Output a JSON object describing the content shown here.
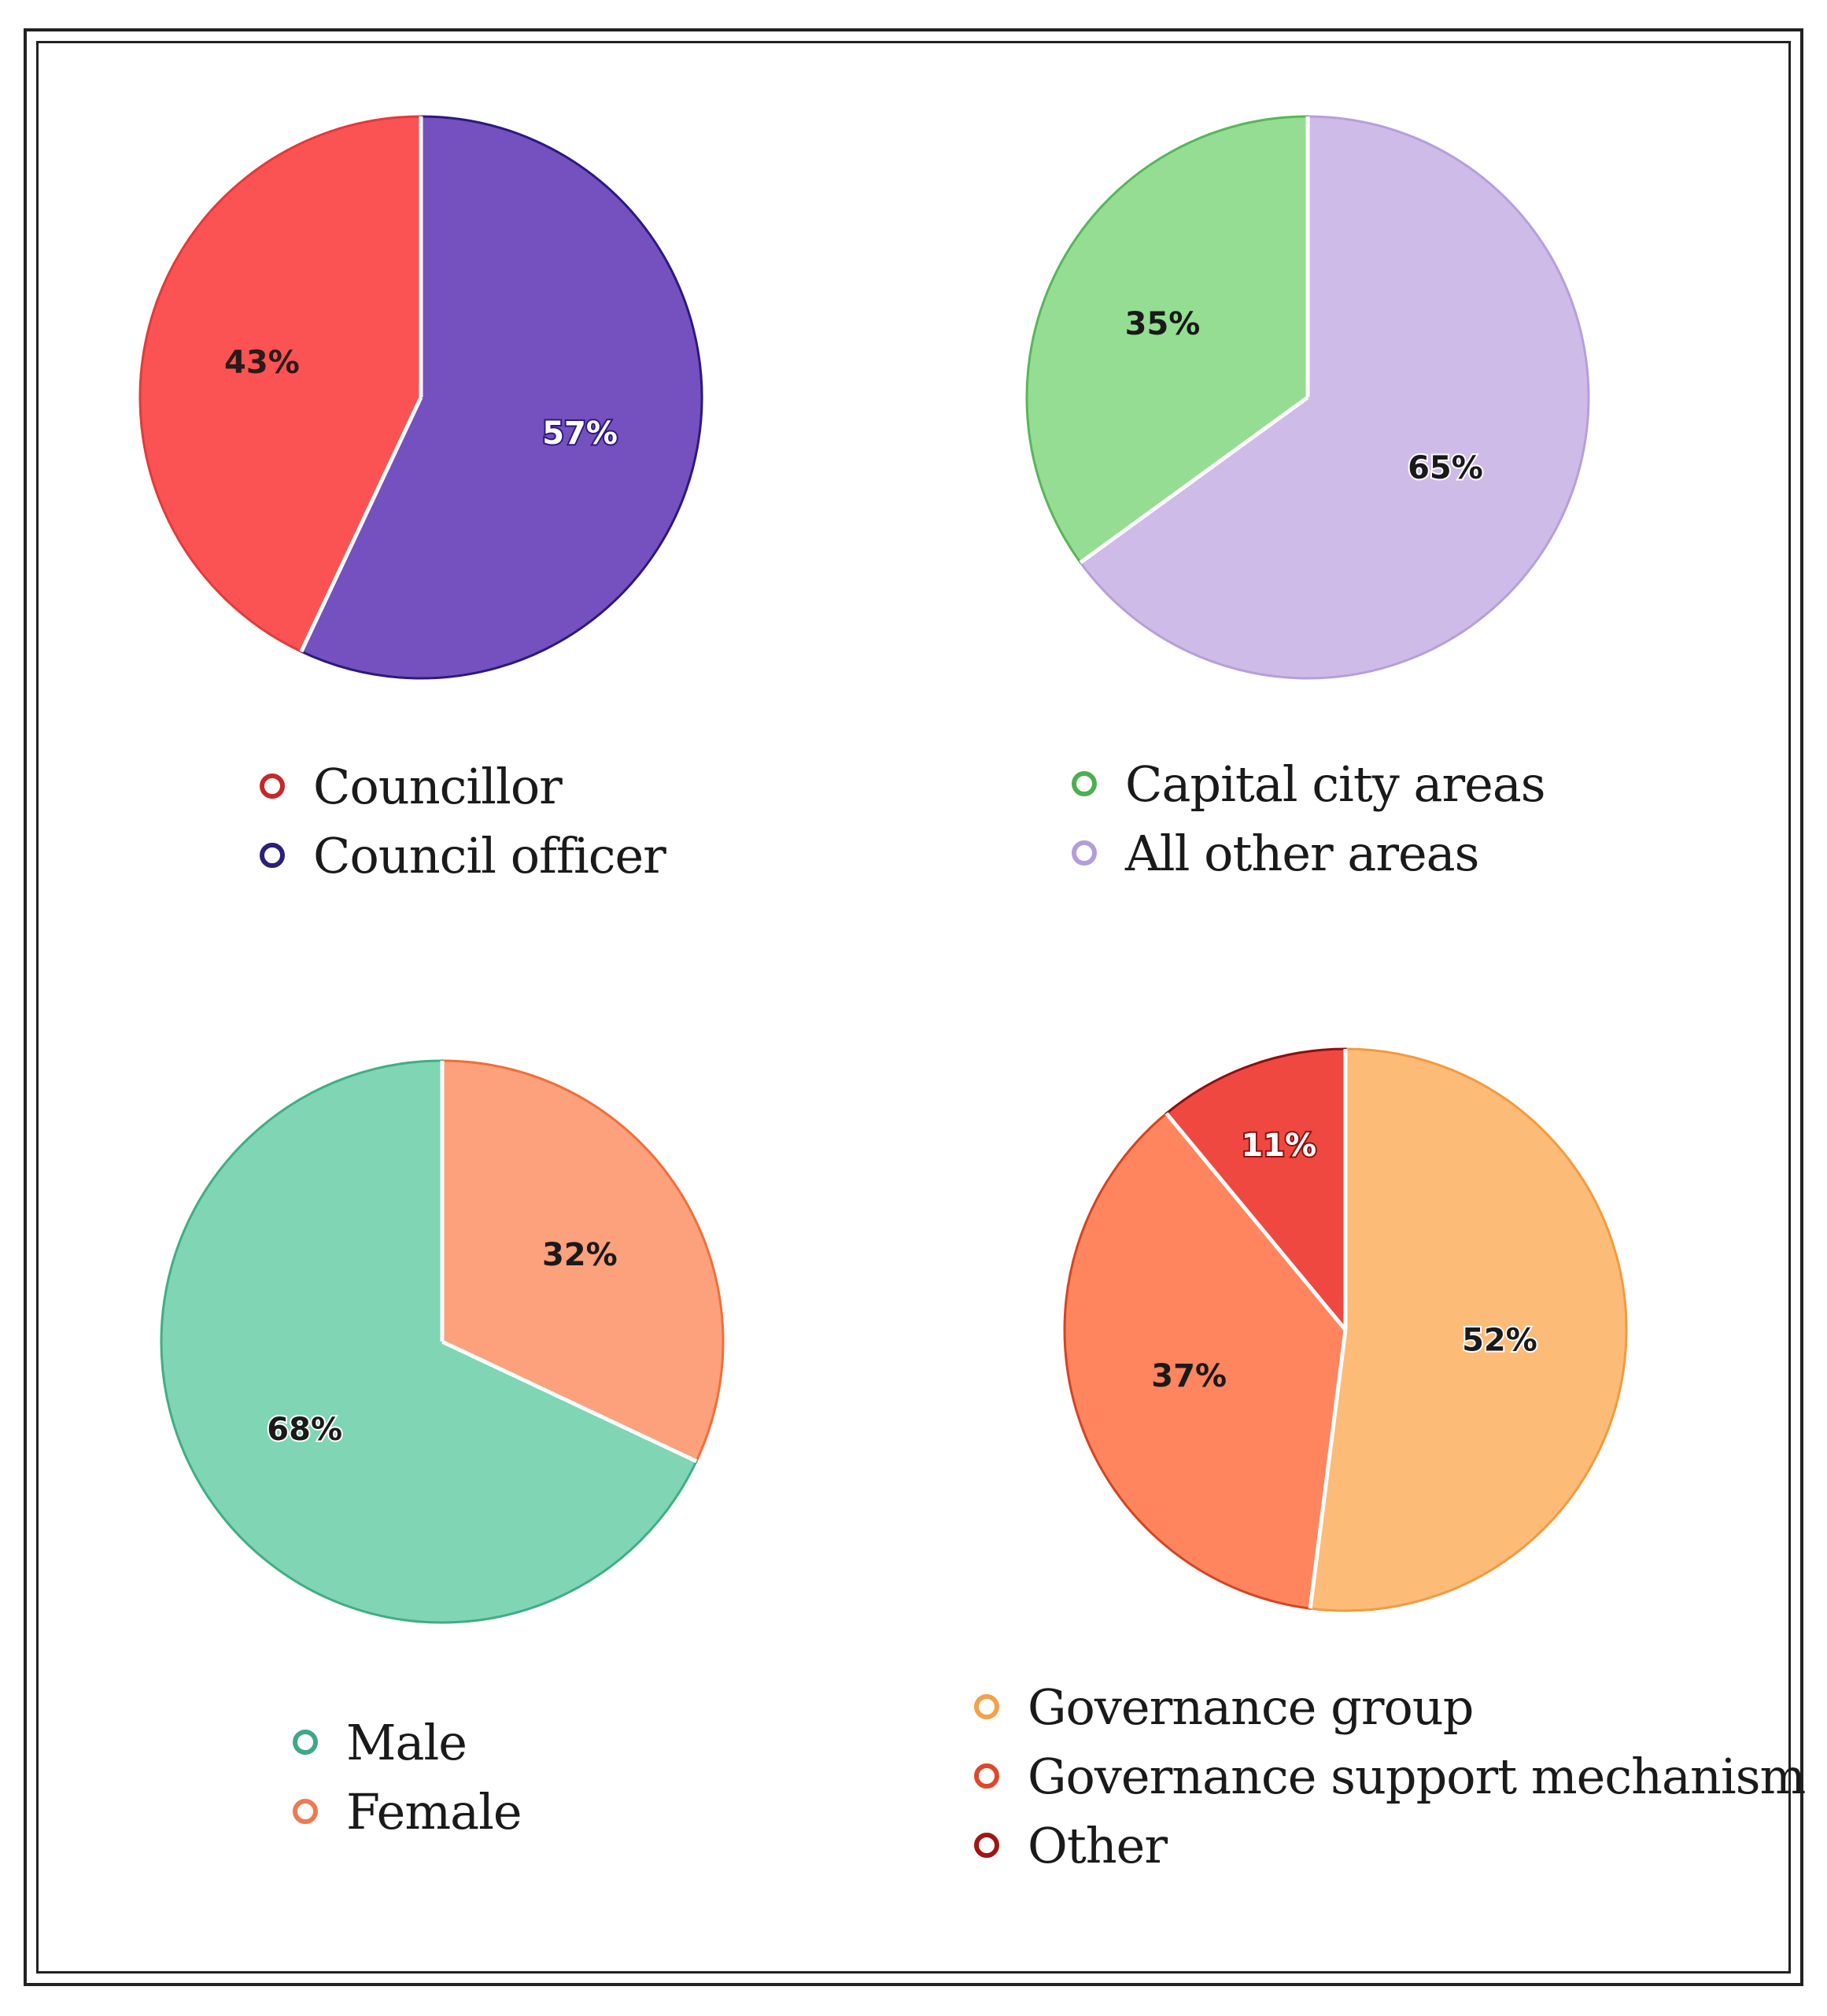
{
  "chart_data": [
    {
      "type": "pie",
      "slices": [
        {
          "label": "Councillor",
          "value": 43,
          "display": "43%",
          "fill": "#fb5353",
          "stroke": "#e23b3b",
          "dot": "#c62828",
          "label_color": "#2a1a1a",
          "label_halo": "#fb5353"
        },
        {
          "label": "Council officer",
          "value": 57,
          "display": "57%",
          "fill": "#7550bf",
          "stroke": "#2a1a80",
          "dot": "#2a1f7a",
          "label_color": "#ffffff",
          "label_halo": "#2a1a80"
        }
      ]
    },
    {
      "type": "pie",
      "slices": [
        {
          "label": "Capital city areas",
          "value": 35,
          "display": "35%",
          "fill": "#95dd92",
          "stroke": "#57b65a",
          "dot": "#4caf50",
          "label_color": "#1a1a1a",
          "label_halo": "#95dd92"
        },
        {
          "label": "All other areas",
          "value": 65,
          "display": "65%",
          "fill": "#cfbbe8",
          "stroke": "#b59fdc",
          "dot": "#b39ddb",
          "label_color": "#1a1a1a",
          "label_halo": "#ffffff"
        }
      ]
    },
    {
      "type": "pie",
      "slices": [
        {
          "label": "Female",
          "value": 32,
          "display": "32%",
          "fill": "#fda07c",
          "stroke": "#ef6f3a",
          "dot": "#f07850",
          "label_color": "#1a1a1a",
          "label_halo": "#fda07c"
        },
        {
          "label": "Male",
          "value": 68,
          "display": "68%",
          "fill": "#80d5b5",
          "stroke": "#3fae85",
          "dot": "#40a886",
          "label_color": "#1a1a1a",
          "label_halo": "#ffffff"
        }
      ]
    },
    {
      "type": "pie",
      "slices": [
        {
          "label": "Governance group",
          "value": 52,
          "display": "52%",
          "fill": "#fdbb78",
          "stroke": "#f39a3d",
          "dot": "#f5a04a",
          "label_color": "#1a1a1a",
          "label_halo": "#ffffff"
        },
        {
          "label": "Governance support mechanism",
          "value": 37,
          "display": "37%",
          "fill": "#ff855e",
          "stroke": "#d64422",
          "dot": "#e0472a",
          "label_color": "#1a1a1a",
          "label_halo": "#ff855e"
        },
        {
          "label": "Other",
          "value": 11,
          "display": "11%",
          "fill": "#ef4840",
          "stroke": "#8b1010",
          "dot": "#a01515",
          "label_color": "#ffffff",
          "label_halo": "#8b1010"
        }
      ]
    }
  ],
  "legends": [
    {
      "items": [
        {
          "label": "Councillor",
          "dot": "#c62828"
        },
        {
          "label": "Council officer",
          "dot": "#2a1f7a"
        }
      ]
    },
    {
      "items": [
        {
          "label": "Capital city areas",
          "dot": "#4caf50"
        },
        {
          "label": "All other areas",
          "dot": "#b39ddb"
        }
      ]
    },
    {
      "items": [
        {
          "label": "Male",
          "dot": "#40a886"
        },
        {
          "label": "Female",
          "dot": "#f07850"
        }
      ]
    },
    {
      "items": [
        {
          "label": "Governance group",
          "dot": "#f5a04a"
        },
        {
          "label": "Governance support mechanism",
          "dot": "#e0472a"
        },
        {
          "label": "Other",
          "dot": "#a01515"
        }
      ]
    }
  ]
}
